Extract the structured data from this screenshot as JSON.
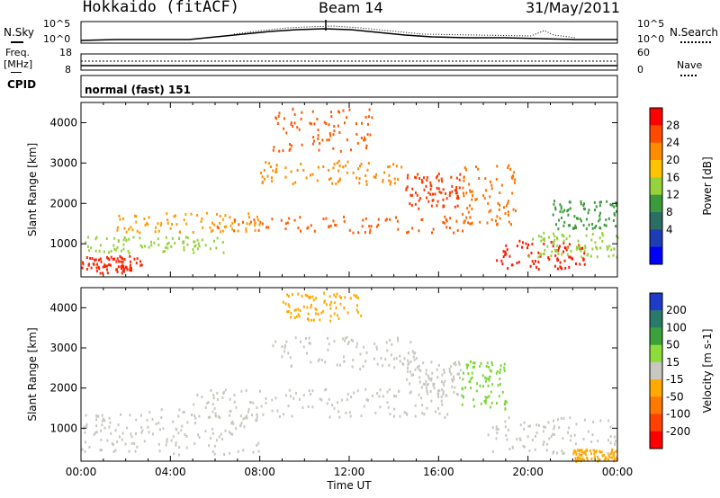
{
  "header": {
    "title": "Hokkaido (fitACF)",
    "beam": "Beam 14",
    "date": "31/May/2011"
  },
  "top_panels": {
    "nsky_label": "N.Sky",
    "nsearch_label": "N.Search",
    "noise_ticks_left": [
      "10^5",
      "10^0"
    ],
    "noise_ticks_right": [
      "10^5",
      "10^0"
    ],
    "freq_label": "Freq.",
    "freq_unit": "[MHz]",
    "freq_ticks": [
      "18",
      "8"
    ],
    "nave_label": "Nave",
    "nave_ticks": [
      "60",
      "0"
    ],
    "cpid_label": "CPID",
    "cpid_value": "normal (fast) 151"
  },
  "chart_data": [
    {
      "type": "heatmap",
      "panel": "power",
      "ylabel": "Slant Range [km]",
      "ylim": [
        180,
        4500
      ],
      "yticks": [
        "1000",
        "2000",
        "3000",
        "4000"
      ],
      "xlim": [
        "00:00",
        "24:00"
      ],
      "colorbar": {
        "label": "Power [dB]",
        "ticks": [
          "28",
          "24",
          "20",
          "16",
          "12",
          "8",
          "4"
        ],
        "colors": [
          "#ff0000",
          "#ff4a00",
          "#ff8c00",
          "#ffc400",
          "#96d23c",
          "#3c9a3c",
          "#2a6e64",
          "#1e3cb4",
          "#0000ff"
        ]
      },
      "regions": [
        {
          "t0": 0.0,
          "t1": 2.7,
          "r0": 300,
          "r1": 720,
          "color": "#ff2200"
        },
        {
          "t0": 0.0,
          "t1": 6.5,
          "r0": 800,
          "r1": 1200,
          "color": "#96d23c"
        },
        {
          "t0": 1.5,
          "t1": 8.0,
          "r0": 1300,
          "r1": 1800,
          "color": "#ff9a00"
        },
        {
          "t0": 6.0,
          "t1": 17.5,
          "r0": 1300,
          "r1": 1700,
          "color": "#ff5a00"
        },
        {
          "t0": 8.0,
          "t1": 14.5,
          "r0": 2500,
          "r1": 3100,
          "color": "#ff8c00"
        },
        {
          "t0": 8.5,
          "t1": 13.0,
          "r0": 3300,
          "r1": 4400,
          "color": "#ff5a00"
        },
        {
          "t0": 14.5,
          "t1": 17.0,
          "r0": 1900,
          "r1": 2800,
          "color": "#ff3a00"
        },
        {
          "t0": 17.0,
          "t1": 19.5,
          "r0": 1500,
          "r1": 3000,
          "color": "#ff7000"
        },
        {
          "t0": 18.5,
          "t1": 22.5,
          "r0": 400,
          "r1": 1100,
          "color": "#ff1a00"
        },
        {
          "t0": 20.0,
          "t1": 24.0,
          "r0": 700,
          "r1": 1300,
          "color": "#96d23c"
        },
        {
          "t0": 21.0,
          "t1": 24.0,
          "r0": 1400,
          "r1": 2100,
          "color": "#3c9a3c"
        }
      ]
    },
    {
      "type": "heatmap",
      "panel": "velocity",
      "ylabel": "Slant Range [km]",
      "ylim": [
        180,
        4500
      ],
      "yticks": [
        "1000",
        "2000",
        "3000",
        "4000"
      ],
      "xlim": [
        "00:00",
        "24:00"
      ],
      "xticks": [
        "00:00",
        "04:00",
        "08:00",
        "12:00",
        "16:00",
        "20:00",
        "00:00"
      ],
      "xlabel": "Time UT",
      "colorbar": {
        "label": "Velocity [m s-1]",
        "ticks": [
          "200",
          "100",
          "50",
          "15",
          "-15",
          "-50",
          "-100",
          "-200"
        ],
        "colors": [
          "#1e3cc8",
          "#2a7a6a",
          "#3ca03c",
          "#8cdc3c",
          "#c8c8c0",
          "#ffaa00",
          "#ff7800",
          "#ff4000",
          "#ff0000"
        ]
      },
      "regions": [
        {
          "t0": 0.0,
          "t1": 8.0,
          "r0": 350,
          "r1": 1500,
          "color": "#c8c8c0"
        },
        {
          "t0": 5.0,
          "t1": 16.5,
          "r0": 1300,
          "r1": 2000,
          "color": "#c8c8c0"
        },
        {
          "t0": 8.5,
          "t1": 15.0,
          "r0": 2500,
          "r1": 3300,
          "color": "#c8c8c0"
        },
        {
          "t0": 14.5,
          "t1": 17.0,
          "r0": 1800,
          "r1": 2700,
          "color": "#c8c8c0"
        },
        {
          "t0": 17.0,
          "t1": 19.0,
          "r0": 1500,
          "r1": 2700,
          "color": "#7cd83a"
        },
        {
          "t0": 18.0,
          "t1": 24.0,
          "r0": 400,
          "r1": 1300,
          "color": "#c8c8c0"
        },
        {
          "t0": 22.0,
          "t1": 24.0,
          "r0": 200,
          "r1": 500,
          "color": "#ffaa00"
        },
        {
          "t0": 9.0,
          "t1": 12.5,
          "r0": 3700,
          "r1": 4400,
          "color": "#ffaa00"
        }
      ]
    }
  ]
}
